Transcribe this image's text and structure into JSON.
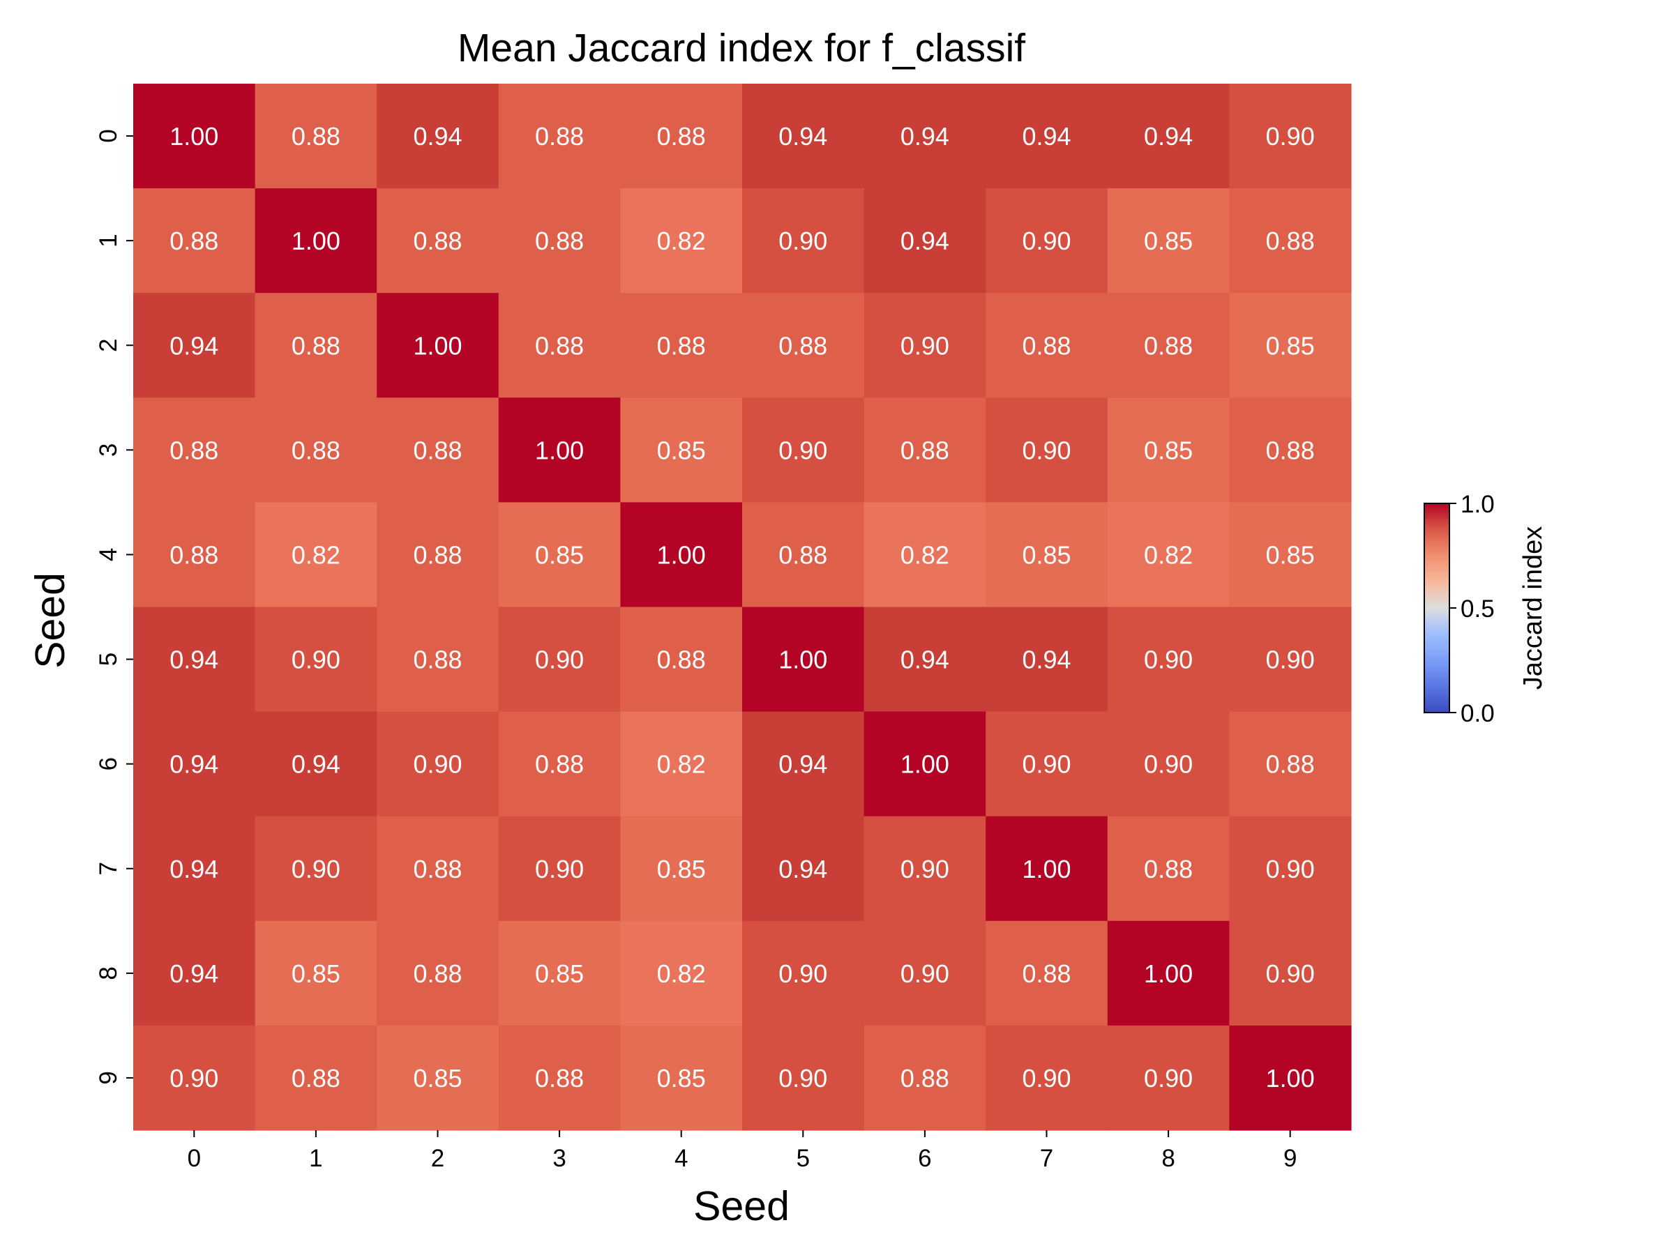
{
  "chart_data": {
    "type": "heatmap",
    "title": "Mean Jaccard index for f_classif",
    "xlabel": "Seed",
    "ylabel": "Seed",
    "x_categories": [
      "0",
      "1",
      "2",
      "3",
      "4",
      "5",
      "6",
      "7",
      "8",
      "9"
    ],
    "y_categories": [
      "0",
      "1",
      "2",
      "3",
      "4",
      "5",
      "6",
      "7",
      "8",
      "9"
    ],
    "values": [
      [
        1.0,
        0.88,
        0.94,
        0.88,
        0.88,
        0.94,
        0.94,
        0.94,
        0.94,
        0.9
      ],
      [
        0.88,
        1.0,
        0.88,
        0.88,
        0.82,
        0.9,
        0.94,
        0.9,
        0.85,
        0.88
      ],
      [
        0.94,
        0.88,
        1.0,
        0.88,
        0.88,
        0.88,
        0.9,
        0.88,
        0.88,
        0.85
      ],
      [
        0.88,
        0.88,
        0.88,
        1.0,
        0.85,
        0.9,
        0.88,
        0.9,
        0.85,
        0.88
      ],
      [
        0.88,
        0.82,
        0.88,
        0.85,
        1.0,
        0.88,
        0.82,
        0.85,
        0.82,
        0.85
      ],
      [
        0.94,
        0.9,
        0.88,
        0.9,
        0.88,
        1.0,
        0.94,
        0.94,
        0.9,
        0.9
      ],
      [
        0.94,
        0.94,
        0.9,
        0.88,
        0.82,
        0.94,
        1.0,
        0.9,
        0.9,
        0.88
      ],
      [
        0.94,
        0.9,
        0.88,
        0.9,
        0.85,
        0.94,
        0.9,
        1.0,
        0.88,
        0.9
      ],
      [
        0.94,
        0.85,
        0.88,
        0.85,
        0.82,
        0.9,
        0.9,
        0.88,
        1.0,
        0.9
      ],
      [
        0.9,
        0.88,
        0.85,
        0.88,
        0.85,
        0.9,
        0.88,
        0.9,
        0.9,
        1.0
      ]
    ],
    "value_format": "0.00",
    "colormap": "coolwarm",
    "vmin": 0.0,
    "vmax": 1.0,
    "colorbar": {
      "label": "Jaccard index",
      "ticks": [
        0.0,
        0.5,
        1.0
      ],
      "tick_labels": [
        "0.0",
        "0.5",
        "1.0"
      ],
      "placement": "right"
    },
    "grid": false
  }
}
